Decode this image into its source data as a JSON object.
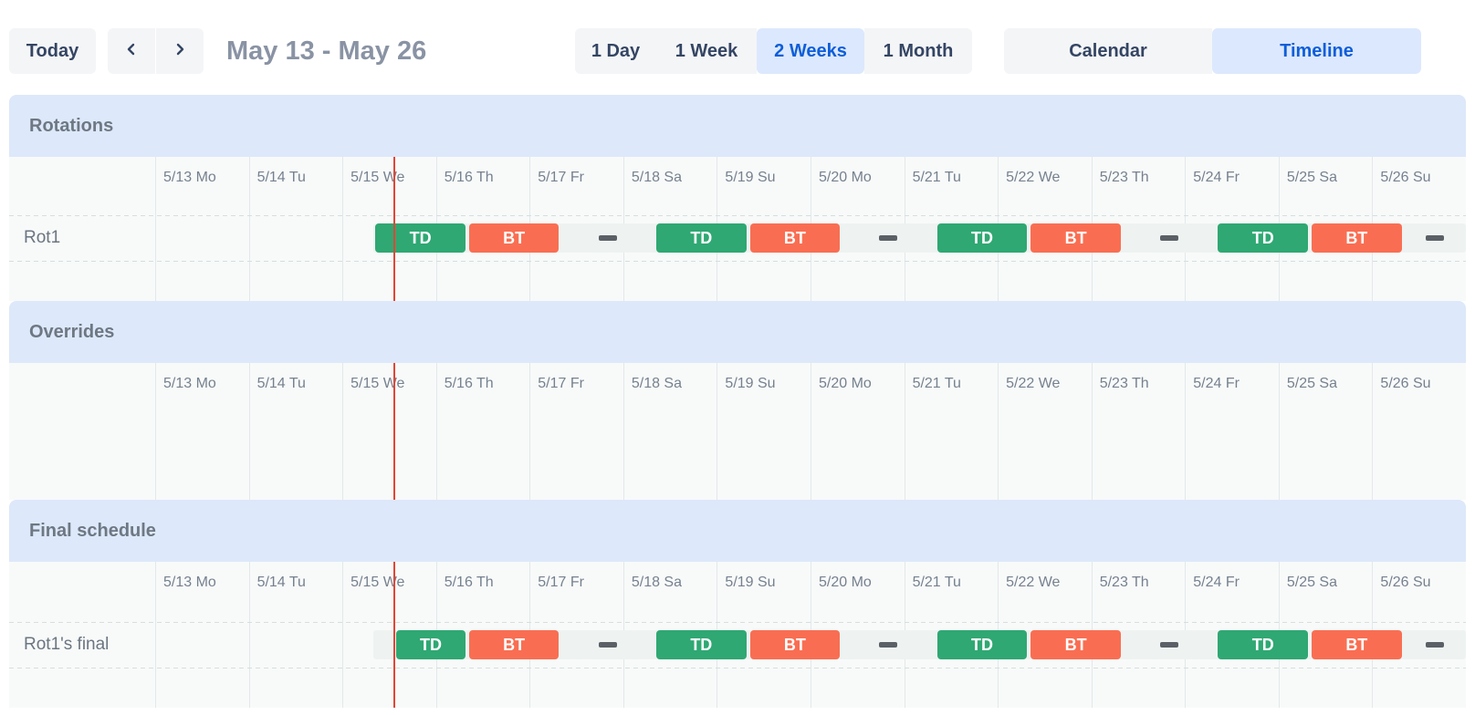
{
  "toolbar": {
    "today": "Today",
    "prev_icon": "chevron-left",
    "next_icon": "chevron-right",
    "title": "May 13 - May 26",
    "range_options": [
      {
        "label": "1 Day",
        "selected": false
      },
      {
        "label": "1 Week",
        "selected": false
      },
      {
        "label": "2 Weeks",
        "selected": true
      },
      {
        "label": "1 Month",
        "selected": false
      }
    ],
    "view_options": [
      {
        "label": "Calendar",
        "selected": false
      },
      {
        "label": "Timeline",
        "selected": true
      }
    ]
  },
  "colors": {
    "shift_green": "#2fa873",
    "shift_orange": "#f96e52",
    "gap_dash": "#5a6066",
    "track": "#eef3f1",
    "now_line": "#e14636",
    "section_band": "#dde8fa",
    "selected_bg": "#dce8fd",
    "selected_text": "#0d5ed9"
  },
  "dates": [
    "5/13 Mo",
    "5/14 Tu",
    "5/15 We",
    "5/16 Th",
    "5/17 Fr",
    "5/18 Sa",
    "5/19 Su",
    "5/20 Mo",
    "5/21 Tu",
    "5/22 We",
    "5/23 Th",
    "5/24 Fr",
    "5/25 Sa",
    "5/26 Su"
  ],
  "timeline": {
    "days": 14,
    "now_day": 2.555
  },
  "sections": [
    {
      "id": "rotations",
      "title": "Rotations",
      "rows": [
        {
          "label": "Rot1",
          "track_start": 2.3333,
          "items": [
            {
              "type": "shift",
              "label": "TD",
              "color": "green",
              "start": 2.3333,
              "end": 3.3333
            },
            {
              "type": "shift",
              "label": "BT",
              "color": "orange",
              "start": 3.3333,
              "end": 4.3333
            },
            {
              "type": "gap",
              "start": 4.3333,
              "end": 5.3333
            },
            {
              "type": "shift",
              "label": "TD",
              "color": "green",
              "start": 5.3333,
              "end": 6.3333
            },
            {
              "type": "shift",
              "label": "BT",
              "color": "orange",
              "start": 6.3333,
              "end": 7.3333
            },
            {
              "type": "gap",
              "start": 7.3333,
              "end": 8.3333
            },
            {
              "type": "shift",
              "label": "TD",
              "color": "green",
              "start": 8.3333,
              "end": 9.3333
            },
            {
              "type": "shift",
              "label": "BT",
              "color": "orange",
              "start": 9.3333,
              "end": 10.3333
            },
            {
              "type": "gap",
              "start": 10.3333,
              "end": 11.3333
            },
            {
              "type": "shift",
              "label": "TD",
              "color": "green",
              "start": 11.3333,
              "end": 12.3333
            },
            {
              "type": "shift",
              "label": "BT",
              "color": "orange",
              "start": 12.3333,
              "end": 13.3333
            },
            {
              "type": "gap",
              "start": 13.3333,
              "end": 14.3333
            }
          ]
        }
      ]
    },
    {
      "id": "overrides",
      "title": "Overrides",
      "rows": []
    },
    {
      "id": "final",
      "title": "Final schedule",
      "rows": [
        {
          "label": "Rot1's final",
          "track_start": 2.3333,
          "items": [
            {
              "type": "shift",
              "label": "TD",
              "color": "green",
              "start": 2.555,
              "end": 3.3333
            },
            {
              "type": "shift",
              "label": "BT",
              "color": "orange",
              "start": 3.3333,
              "end": 4.3333
            },
            {
              "type": "gap",
              "start": 4.3333,
              "end": 5.3333
            },
            {
              "type": "shift",
              "label": "TD",
              "color": "green",
              "start": 5.3333,
              "end": 6.3333
            },
            {
              "type": "shift",
              "label": "BT",
              "color": "orange",
              "start": 6.3333,
              "end": 7.3333
            },
            {
              "type": "gap",
              "start": 7.3333,
              "end": 8.3333
            },
            {
              "type": "shift",
              "label": "TD",
              "color": "green",
              "start": 8.3333,
              "end": 9.3333
            },
            {
              "type": "shift",
              "label": "BT",
              "color": "orange",
              "start": 9.3333,
              "end": 10.3333
            },
            {
              "type": "gap",
              "start": 10.3333,
              "end": 11.3333
            },
            {
              "type": "shift",
              "label": "TD",
              "color": "green",
              "start": 11.3333,
              "end": 12.3333
            },
            {
              "type": "shift",
              "label": "BT",
              "color": "orange",
              "start": 12.3333,
              "end": 13.3333
            },
            {
              "type": "gap",
              "start": 13.3333,
              "end": 14.3333
            }
          ]
        }
      ]
    }
  ]
}
